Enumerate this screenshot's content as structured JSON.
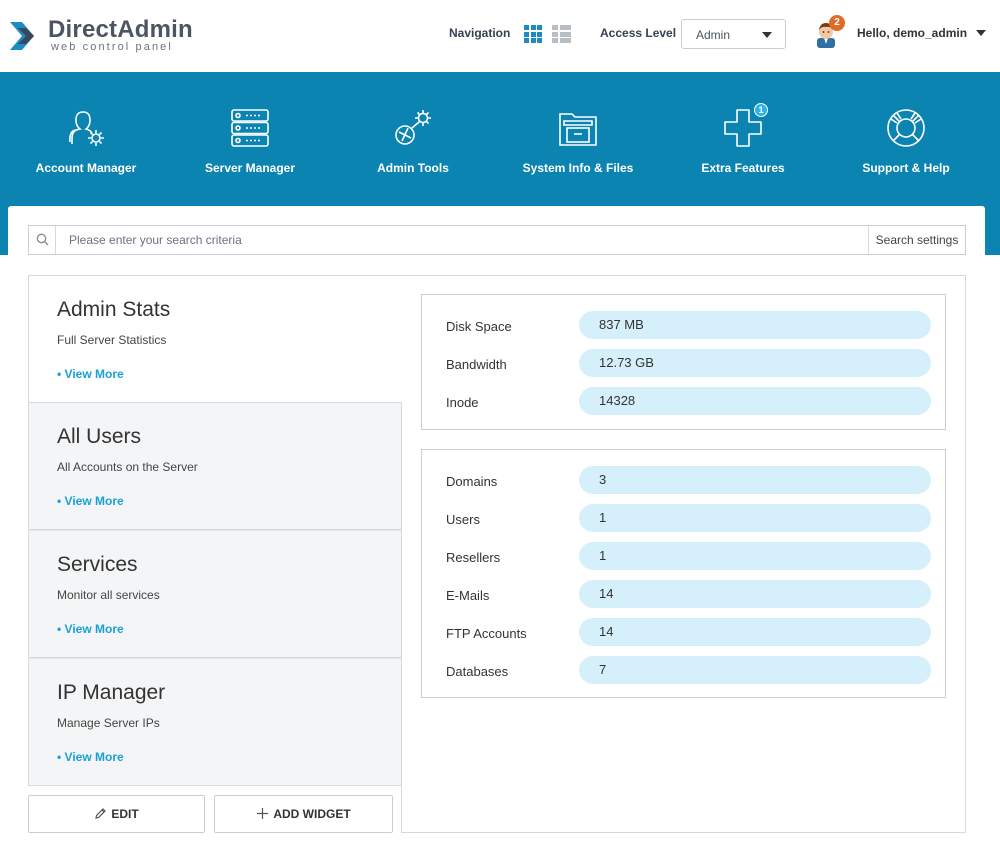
{
  "header": {
    "logo": {
      "brand_a": "Direct",
      "brand_b": "Admin",
      "tagline": "web control panel"
    },
    "navigation_label": "Navigation",
    "access_level_label": "Access Level",
    "access_level_value": "Admin",
    "notification_count": "2",
    "greeting": "Hello, demo_admin"
  },
  "main_menu": [
    {
      "label": "Account Manager",
      "icon": "users-gear-icon"
    },
    {
      "label": "Server Manager",
      "icon": "server-icon"
    },
    {
      "label": "Admin Tools",
      "icon": "tools-icon"
    },
    {
      "label": "System Info & Files",
      "icon": "folder-icon"
    },
    {
      "label": "Extra Features",
      "icon": "plus-icon",
      "badge": "1"
    },
    {
      "label": "Support & Help",
      "icon": "lifebuoy-icon"
    }
  ],
  "search": {
    "placeholder": "Please enter your search criteria",
    "settings_label": "Search settings"
  },
  "widgets": [
    {
      "title": "Admin Stats",
      "description": "Full Server Statistics",
      "link": "• View More"
    },
    {
      "title": "All Users",
      "description": "All Accounts on the Server",
      "link": "• View More"
    },
    {
      "title": "Services",
      "description": "Monitor all services",
      "link": "• View More"
    },
    {
      "title": "IP Manager",
      "description": "Manage Server IPs",
      "link": "• View More"
    }
  ],
  "usage_stats": [
    {
      "label": "Disk Space",
      "value": "837 MB"
    },
    {
      "label": "Bandwidth",
      "value": "12.73 GB"
    },
    {
      "label": "Inode",
      "value": "14328"
    }
  ],
  "count_stats": [
    {
      "label": "Domains",
      "value": "3"
    },
    {
      "label": "Users",
      "value": "1"
    },
    {
      "label": "Resellers",
      "value": "1"
    },
    {
      "label": "E-Mails",
      "value": "14"
    },
    {
      "label": "FTP Accounts",
      "value": "14"
    },
    {
      "label": "Databases",
      "value": "7"
    }
  ],
  "actions": {
    "edit_label": "EDIT",
    "add_widget_label": "ADD WIDGET"
  },
  "colors": {
    "brand_blue": "#0b84b1",
    "link_blue": "#1aa0d8",
    "value_pill": "#d5f0fb",
    "notification": "#e06a2a"
  }
}
